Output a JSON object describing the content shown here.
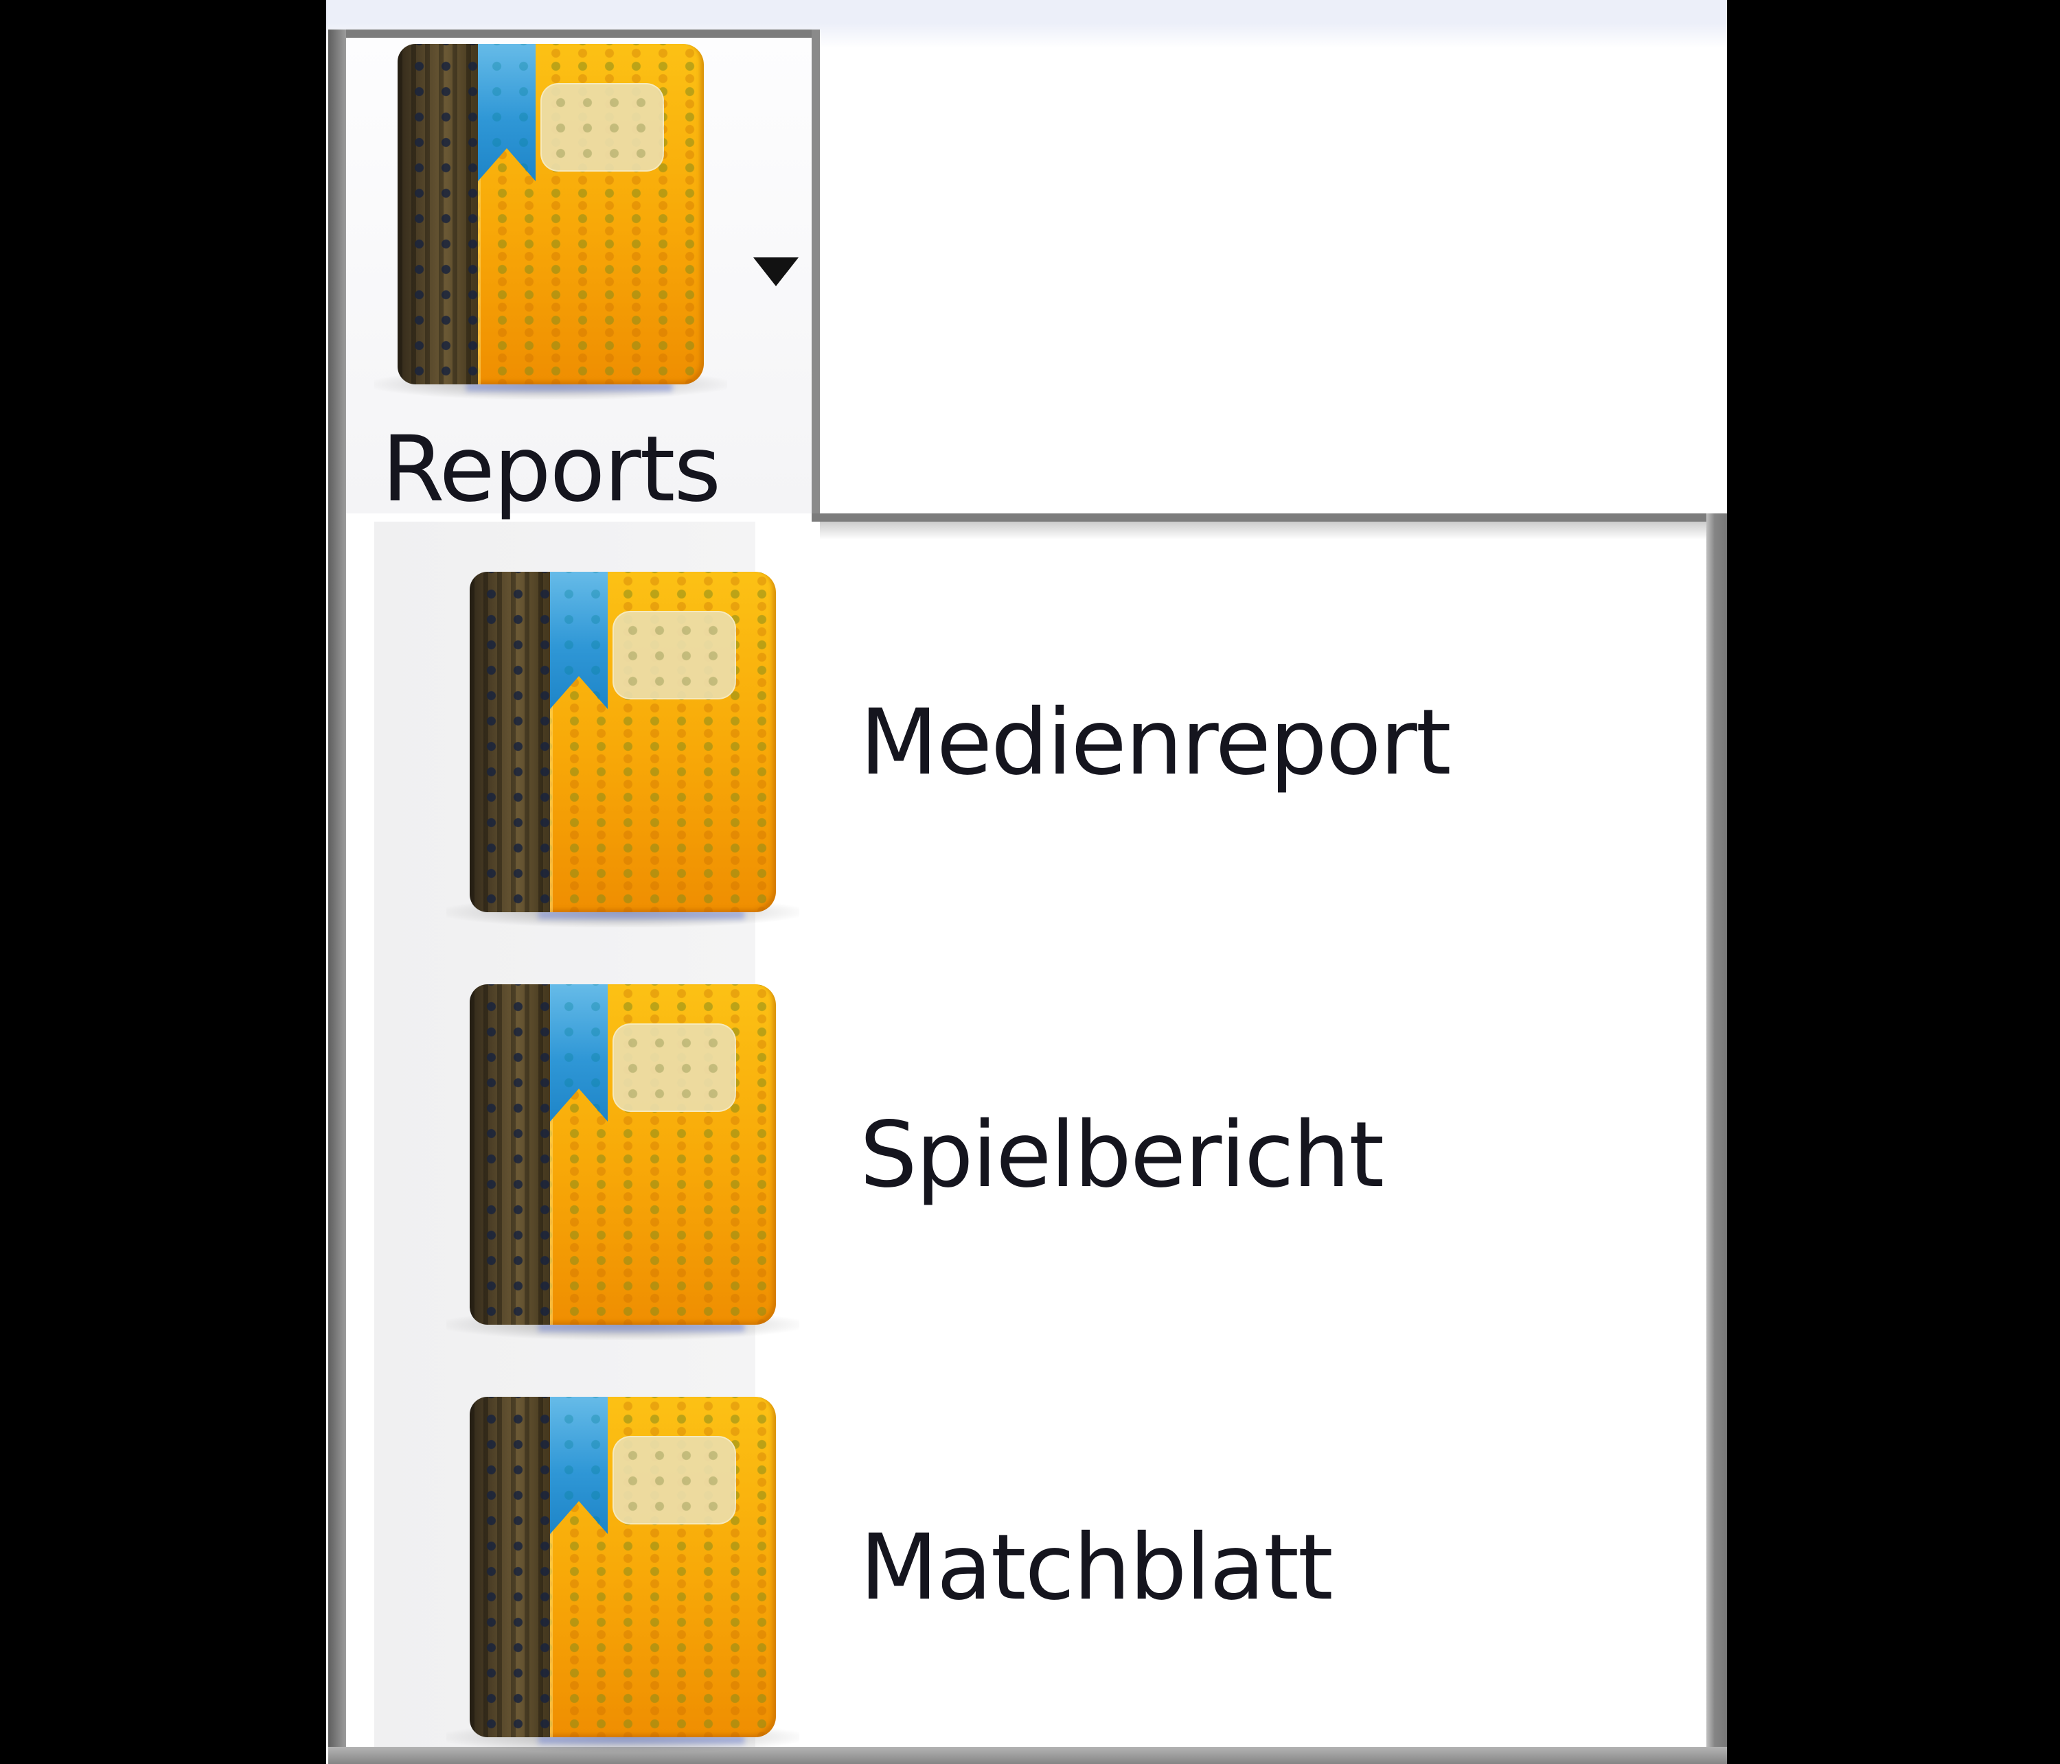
{
  "toolbar": {
    "reports_button": {
      "label": "Reports",
      "icon": "book-icon",
      "has_dropdown": true
    }
  },
  "menu": {
    "items": [
      {
        "label": "Medienreport",
        "icon": "book-icon"
      },
      {
        "label": "Spielbericht",
        "icon": "book-icon"
      },
      {
        "label": "Matchblatt",
        "icon": "book-icon"
      }
    ]
  },
  "icons": {
    "book_icon": "orange notebook with dark spine and blue bookmark ribbon",
    "dropdown_icon": "caret-down"
  },
  "colors": {
    "accent_book_orange": "#f8a908",
    "book_spine_brown": "#55462a",
    "bookmark_blue": "#2f97d6",
    "plate_beige": "#ebdDaa",
    "text": "#15151e",
    "top_strip": "#eceff9",
    "frame_gray": "#7c7c7c",
    "icon_column_gray": "#f2f2f3",
    "surround_black": "#000000"
  }
}
